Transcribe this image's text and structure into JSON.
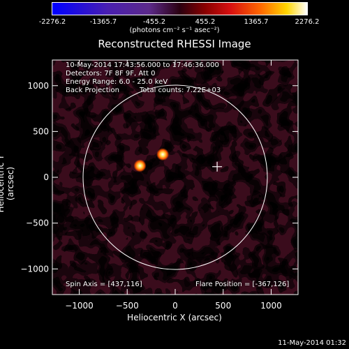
{
  "colorbar": {
    "ticks": [
      "-2276.2",
      "-1365.7",
      "-455.2",
      "455.2",
      "1365.7",
      "2276.2"
    ],
    "min": -2276.2,
    "max": 2276.2,
    "units": "(photons cm⁻² s⁻¹ asec⁻²)"
  },
  "chart_data": {
    "type": "heatmap",
    "title": "Reconstructed RHESSI Image",
    "xlabel": "Heliocentric X (arcsec)",
    "ylabel": "Heliocentric Y (arcsec)",
    "xlim": [
      -1280,
      1280
    ],
    "ylim": [
      -1280,
      1280
    ],
    "x_ticks": [
      -1000,
      -500,
      0,
      500,
      1000
    ],
    "y_ticks": [
      -1000,
      -500,
      0,
      500,
      1000
    ],
    "x_tick_labels": [
      "−1000",
      "−500",
      "0",
      "500",
      "1000"
    ],
    "y_tick_labels": [
      "−1000",
      "−500",
      "0",
      "500",
      "1000"
    ],
    "solar_limb_radius": 960,
    "spin_axis": [
      437,
      116
    ],
    "sources": [
      {
        "x": -367,
        "y": 126
      },
      {
        "x": -130,
        "y": 250
      }
    ],
    "marker_cross": [
      437,
      116
    ]
  },
  "info": {
    "time_range": "10-May-2014 17:43:56.000 to 17:46:36.000",
    "detectors": "Detectors: 7F 8F 9F, Att 0",
    "energy": "Energy Range: 6.0 - 25.0 keV",
    "method": "Back Projection",
    "counts": "Total counts: 7.22E+03",
    "spin_axis": "Spin Axis = [437,116]",
    "flare_position": "Flare Position = [-367,126]"
  },
  "footer": "11-May-2014 01:32"
}
